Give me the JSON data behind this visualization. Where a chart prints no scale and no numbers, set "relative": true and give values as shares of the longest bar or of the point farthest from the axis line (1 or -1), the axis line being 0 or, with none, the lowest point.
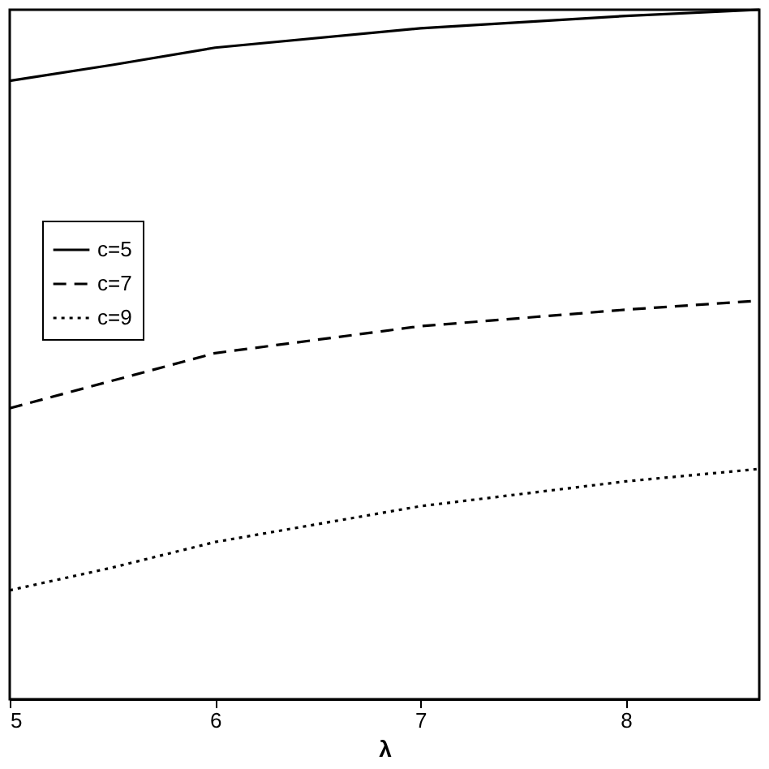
{
  "chart_data": {
    "type": "line",
    "xlabel": "λ",
    "relative": true,
    "x": [
      5,
      5.5,
      6,
      7,
      8,
      8.65
    ],
    "xlim": [
      5,
      8.65
    ],
    "xticks": [
      5,
      6,
      7,
      8
    ],
    "grid": false,
    "legend": "top left",
    "marker": "none",
    "series": [
      {
        "name": "c=5",
        "color": "#000000",
        "line_style": "solid",
        "values": [
          0.897,
          0.92,
          0.945,
          0.973,
          0.991,
          1
        ]
      },
      {
        "name": "c=7",
        "color": "#000000",
        "line_style": "dashed",
        "values": [
          0.422,
          0.462,
          0.502,
          0.541,
          0.565,
          0.578
        ]
      },
      {
        "name": "c=9",
        "color": "#000000",
        "line_style": "dotted",
        "values": [
          0.158,
          0.191,
          0.228,
          0.28,
          0.316,
          0.334
        ]
      }
    ]
  }
}
